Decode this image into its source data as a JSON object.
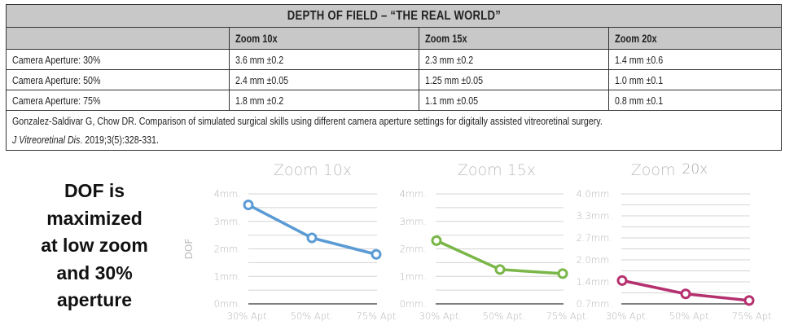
{
  "table": {
    "title": "DEPTH OF FIELD – “THE REAL WORLD”",
    "columns": [
      "",
      "Zoom 10x",
      "Zoom 15x",
      "Zoom 20x"
    ],
    "rows": [
      {
        "label": "Camera Aperture: 30%",
        "values": [
          "3.6 mm ±0.2",
          "2.3 mm ±0.2",
          "1.4 mm ±0.6"
        ]
      },
      {
        "label": "Camera Aperture: 50%",
        "values": [
          "2.4 mm ±0.05",
          "1.25 mm ±0.05",
          "1.0 mm ±0.1"
        ]
      },
      {
        "label": "Camera Aperture: 75%",
        "values": [
          "1.8 mm ±0.2",
          "1.1 mm ±0.05",
          "0.8 mm ±0.1"
        ]
      }
    ],
    "citation_main": "Gonzalez-Saldivar G, Chow DR. Comparison of simulated surgical skills using different camera aperture settings for digitally assisted vitreoretinal surgery.",
    "citation_journal": "J Vitreoretinal Dis",
    "citation_ref": ". 2019;3(5):328-331."
  },
  "takeaway": [
    "DOF is",
    "maximized",
    "at low zoom",
    "and 30%",
    "aperture"
  ],
  "chart_data": [
    {
      "type": "line",
      "title": "Zoom 10x",
      "ylabel": "DOF",
      "xlabel": "",
      "categories": [
        "30% Apt.",
        "50% Apt.",
        "75% Apt"
      ],
      "series": [
        {
          "name": "Zoom 10x",
          "values": [
            3.6,
            2.4,
            1.8
          ],
          "color": "#5b9bd5"
        }
      ],
      "ylim": [
        0,
        4
      ],
      "yticks": [
        0,
        1,
        2,
        3,
        4
      ],
      "ytick_labels": [
        "0mm.",
        "1mm.",
        "2mm.",
        "3mm.",
        "4mm."
      ],
      "minor_gridlines": true
    },
    {
      "type": "line",
      "title": "Zoom 15x",
      "ylabel": "",
      "xlabel": "",
      "categories": [
        "30% Apt.",
        "50% Apt.",
        "75% Apt."
      ],
      "series": [
        {
          "name": "Zoom 15x",
          "values": [
            2.3,
            1.25,
            1.1
          ],
          "color": "#7ab648"
        }
      ],
      "ylim": [
        0,
        4
      ],
      "yticks": [
        0,
        1,
        2,
        3,
        4
      ],
      "ytick_labels": [
        "0mm.",
        "1mm.",
        "2mm.",
        "3mm.",
        "4mm."
      ],
      "minor_gridlines": true
    },
    {
      "type": "line",
      "title": "Zoom",
      "title_suffix": "20x",
      "ylabel": "",
      "xlabel": "",
      "categories": [
        "30% Apt.",
        "50% Apt.",
        "75% Apt."
      ],
      "series": [
        {
          "name": "Zoom 20x",
          "values": [
            1.4,
            1.0,
            0.8
          ],
          "color": "#b5306e"
        }
      ],
      "ylim": [
        0.7,
        4.0
      ],
      "yticks": [
        0.7,
        1.36,
        2.02,
        2.68,
        3.34,
        4.0
      ],
      "ytick_labels": [
        "0.7mm.",
        "1.4mm.",
        "2.0mm.",
        "2.7mm.",
        "3.3mm.",
        "4.0mm."
      ],
      "minor_gridlines": true
    }
  ]
}
